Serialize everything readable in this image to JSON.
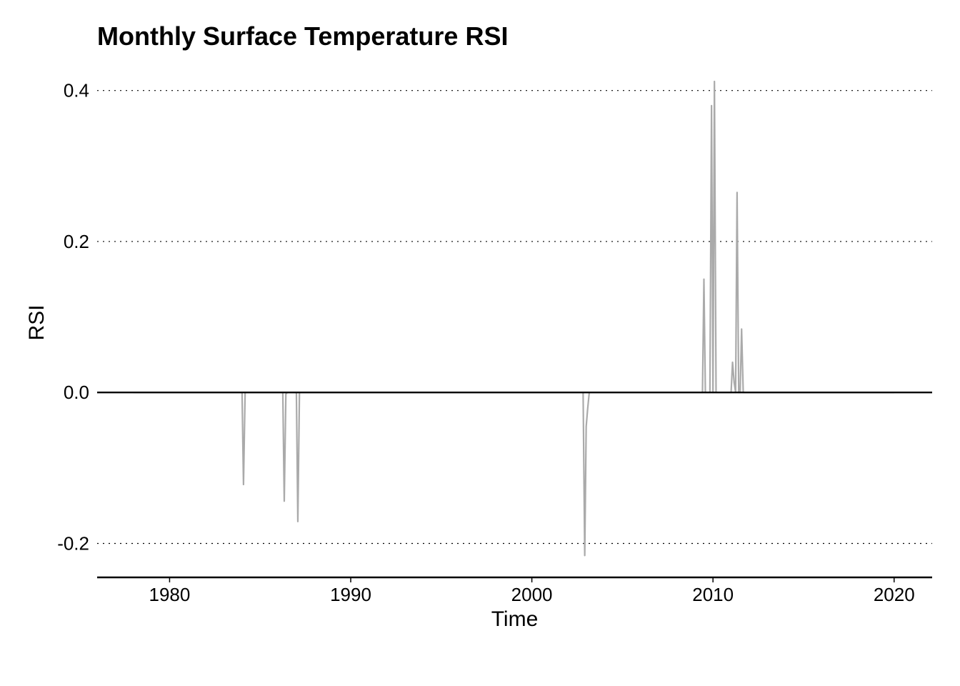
{
  "chart_data": {
    "type": "line",
    "title": "Monthly Surface Temperature RSI",
    "xlabel": "Time",
    "ylabel": "RSI",
    "xlim": [
      1976,
      2022.1
    ],
    "ylim": [
      -0.245,
      0.43
    ],
    "xticks": [
      1980,
      1990,
      2000,
      2010,
      2020
    ],
    "xtick_labels": [
      "1980",
      "1990",
      "2000",
      "2010",
      "2020"
    ],
    "yticks": [
      -0.2,
      0.0,
      0.2,
      0.4
    ],
    "ytick_labels": [
      "-0.2",
      "0.0",
      "0.2",
      "0.4"
    ],
    "grid": "horizontal dotted",
    "zero_line": true,
    "line_color": "#aaaaaa",
    "series": [
      {
        "x": [
          1978.0,
          1984.0,
          1984.08,
          1984.17,
          1986.25,
          1986.33,
          1986.42,
          1986.5,
          1987.0,
          1987.08,
          1987.17,
          2002.83,
          2002.92,
          2003.0,
          2003.08,
          2003.17,
          2003.25,
          2009.42,
          2009.5,
          2009.58,
          2009.67,
          2009.83,
          2009.92,
          2010.0,
          2010.08,
          2010.17,
          2010.25,
          2011.0,
          2011.08,
          2011.17,
          2011.25,
          2011.33,
          2011.42,
          2011.5,
          2011.58,
          2011.67,
          2011.75,
          2020.0
        ],
        "y": [
          0.0,
          0.0,
          -0.122,
          0.0,
          0.0,
          -0.144,
          -0.002,
          0.0,
          0.0,
          -0.171,
          0.0,
          0.0,
          -0.216,
          -0.045,
          -0.022,
          0.0,
          0.0,
          0.0,
          0.15,
          0.0,
          0.0,
          0.0,
          0.38,
          0.0,
          0.412,
          0.0,
          0.0,
          0.0,
          0.04,
          0.013,
          0.0,
          0.265,
          0.0,
          0.0,
          0.084,
          0.0,
          0.0,
          0.0
        ]
      }
    ]
  }
}
